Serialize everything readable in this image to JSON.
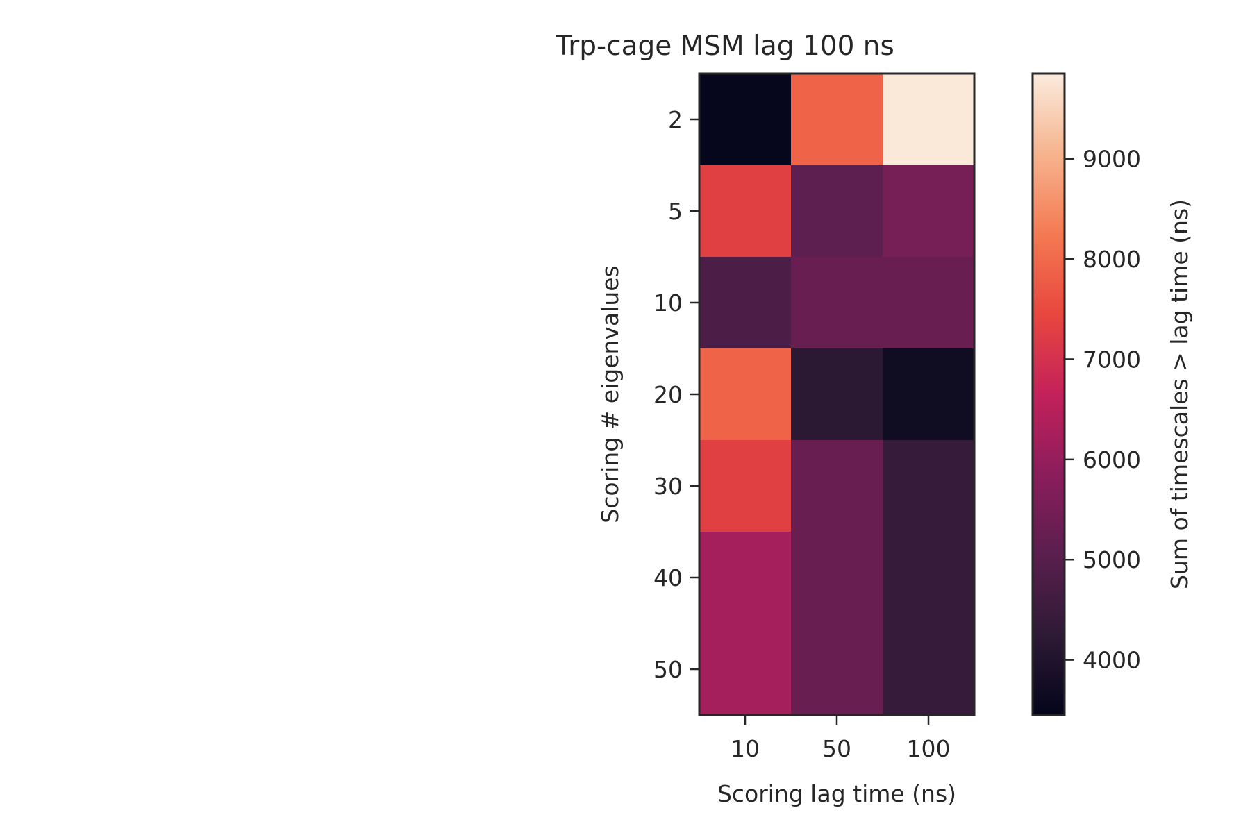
{
  "chart_data": {
    "type": "heatmap",
    "title": "Trp-cage MSM lag 100 ns",
    "xlabel": "Scoring lag time (ns)",
    "ylabel": "Scoring # eigenvalues",
    "x_categories": [
      "10",
      "50",
      "100"
    ],
    "y_categories": [
      "2",
      "5",
      "10",
      "20",
      "30",
      "40",
      "50"
    ],
    "values": [
      [
        3500,
        7900,
        9800
      ],
      [
        7300,
        5100,
        5500
      ],
      [
        4800,
        5300,
        5300
      ],
      [
        7900,
        4200,
        3700
      ],
      [
        7300,
        5300,
        4400
      ],
      [
        6200,
        5300,
        4400
      ],
      [
        6200,
        5300,
        4400
      ]
    ],
    "colorbar": {
      "label": "Sum of timescales > lag time (ns)",
      "min": 3450,
      "max": 9850,
      "ticks": [
        4000,
        5000,
        6000,
        7000,
        8000,
        9000
      ],
      "colormap": "rocket",
      "colors": [
        "#03051a",
        "#2e1a35",
        "#5a1f4e",
        "#8b1d5c",
        "#c3215a",
        "#e8473e",
        "#f47a52",
        "#f6b48e",
        "#faebdd"
      ]
    }
  }
}
